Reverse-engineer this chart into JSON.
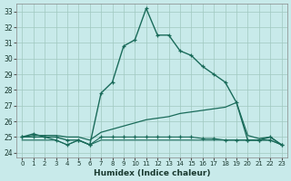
{
  "xlabel": "Humidex (Indice chaleur)",
  "bg_color": "#c8eaea",
  "grid_color": "#a0c8c0",
  "line_color": "#1a6b5a",
  "xlim": [
    -0.5,
    23.5
  ],
  "ylim": [
    23.7,
    33.5
  ],
  "xticks": [
    0,
    1,
    2,
    3,
    4,
    5,
    6,
    7,
    8,
    9,
    10,
    11,
    12,
    13,
    14,
    15,
    16,
    17,
    18,
    19,
    20,
    21,
    22,
    23
  ],
  "yticks": [
    24,
    25,
    26,
    27,
    28,
    29,
    30,
    31,
    32,
    33
  ],
  "series": [
    {
      "x": [
        0,
        1,
        2,
        3,
        4,
        5,
        6,
        7,
        8,
        9,
        10,
        11,
        12,
        13,
        14,
        15,
        16,
        17,
        18,
        19,
        20,
        21,
        22,
        23
      ],
      "y": [
        25.0,
        25.2,
        25.0,
        25.0,
        24.8,
        24.8,
        24.5,
        27.8,
        28.5,
        30.8,
        31.2,
        33.2,
        31.5,
        31.5,
        30.5,
        30.2,
        29.5,
        29.0,
        28.5,
        27.2,
        24.8,
        24.8,
        25.0,
        24.5
      ],
      "marker": true,
      "lw": 1.0
    },
    {
      "x": [
        0,
        1,
        2,
        3,
        4,
        5,
        6,
        7,
        8,
        9,
        10,
        11,
        12,
        13,
        14,
        15,
        16,
        17,
        18,
        19,
        20,
        21,
        22,
        23
      ],
      "y": [
        25.0,
        25.1,
        25.1,
        25.1,
        25.0,
        25.0,
        24.8,
        25.3,
        25.5,
        25.7,
        25.9,
        26.1,
        26.2,
        26.3,
        26.5,
        26.6,
        26.7,
        26.8,
        26.9,
        27.2,
        25.1,
        24.9,
        25.0,
        24.5
      ],
      "marker": false,
      "lw": 0.9
    },
    {
      "x": [
        0,
        1,
        2,
        3,
        4,
        5,
        6,
        7,
        8,
        9,
        10,
        11,
        12,
        13,
        14,
        15,
        16,
        17,
        18,
        19,
        20,
        21,
        22,
        23
      ],
      "y": [
        25.0,
        25.0,
        25.0,
        24.8,
        24.5,
        24.8,
        24.5,
        25.0,
        25.0,
        25.0,
        25.0,
        25.0,
        25.0,
        25.0,
        25.0,
        25.0,
        24.9,
        24.9,
        24.8,
        24.8,
        24.8,
        24.8,
        24.8,
        24.5
      ],
      "marker": true,
      "lw": 0.8
    },
    {
      "x": [
        0,
        1,
        2,
        3,
        4,
        5,
        6,
        7,
        8,
        9,
        10,
        11,
        12,
        13,
        14,
        15,
        16,
        17,
        18,
        19,
        20,
        21,
        22,
        23
      ],
      "y": [
        24.8,
        24.8,
        24.8,
        24.8,
        24.5,
        24.8,
        24.5,
        24.8,
        24.8,
        24.8,
        24.8,
        24.8,
        24.8,
        24.8,
        24.8,
        24.8,
        24.8,
        24.8,
        24.8,
        24.8,
        24.8,
        24.8,
        24.8,
        24.5
      ],
      "marker": false,
      "lw": 0.8
    }
  ]
}
